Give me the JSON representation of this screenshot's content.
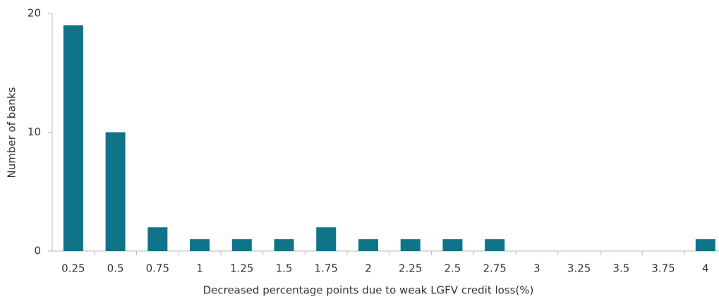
{
  "chart_data": {
    "type": "bar",
    "x_label": "Decreased percentage points due to weak LGFV credit loss(%)",
    "y_label": "Number of banks",
    "categories": [
      "0.25",
      "0.5",
      "0.75",
      "1",
      "1.25",
      "1.5",
      "1.75",
      "2",
      "2.25",
      "2.5",
      "2.75",
      "3",
      "3.25",
      "3.5",
      "3.75",
      "4"
    ],
    "values": [
      19,
      10,
      2,
      1,
      1,
      1,
      2,
      1,
      1,
      1,
      1,
      0,
      0,
      0,
      0,
      1
    ],
    "color": "#0f7389",
    "ylim": [
      0,
      20
    ],
    "yticks": [
      0,
      10,
      20
    ],
    "grid": false
  }
}
